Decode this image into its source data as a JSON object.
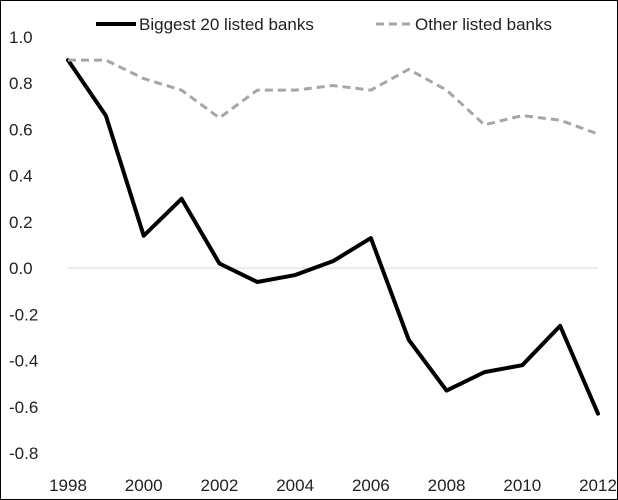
{
  "chart_data": {
    "type": "line",
    "title": "",
    "xlabel": "",
    "ylabel": "",
    "x": [
      1998,
      1999,
      2000,
      2001,
      2002,
      2003,
      2004,
      2005,
      2006,
      2007,
      2008,
      2009,
      2010,
      2011,
      2012
    ],
    "xticks": [
      "1998",
      "2000",
      "2002",
      "2004",
      "2006",
      "2008",
      "2010",
      "2012"
    ],
    "yticks": [
      "1.0",
      "0.8",
      "0.6",
      "0.4",
      "0.2",
      "0.0",
      "-0.2",
      "-0.4",
      "-0.6",
      "-0.8"
    ],
    "ylim": [
      -0.8,
      1.0
    ],
    "xlim": [
      1998,
      2012
    ],
    "grid": false,
    "zero_line": true,
    "legend_position": "top",
    "series": [
      {
        "name": "Biggest 20 listed banks",
        "color": "#000000",
        "style": "solid",
        "values": [
          0.9,
          0.66,
          0.14,
          0.3,
          0.02,
          -0.06,
          -0.03,
          0.03,
          0.13,
          -0.31,
          -0.53,
          -0.45,
          -0.42,
          -0.25,
          -0.63
        ]
      },
      {
        "name": "Other listed banks",
        "color": "#a6a6a6",
        "style": "dashed",
        "values": [
          0.9,
          0.9,
          0.82,
          0.77,
          0.65,
          0.77,
          0.77,
          0.79,
          0.77,
          0.86,
          0.77,
          0.62,
          0.66,
          0.64,
          0.58
        ]
      }
    ]
  }
}
